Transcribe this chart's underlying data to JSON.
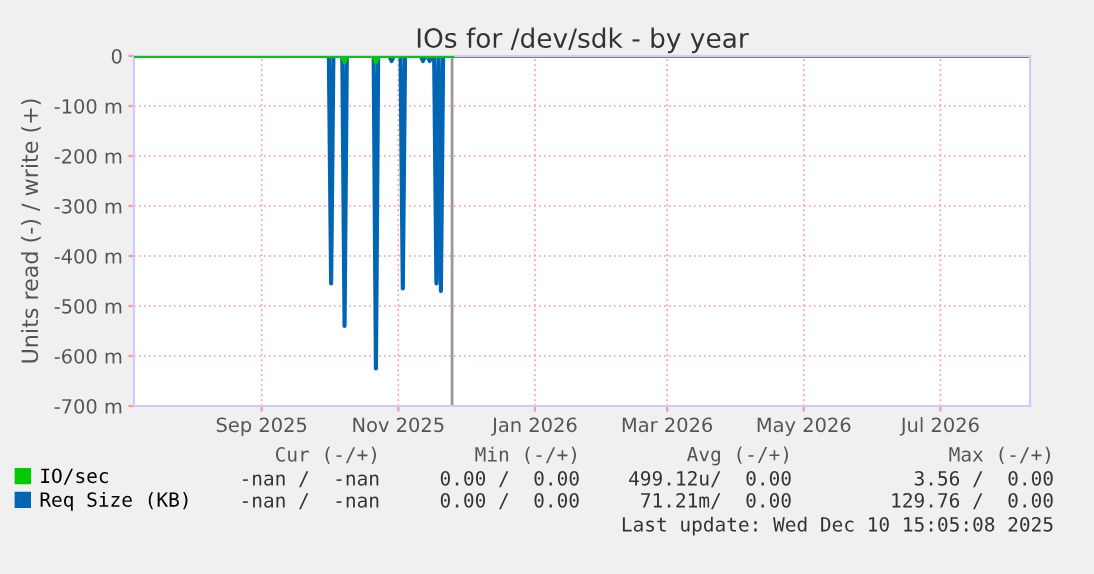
{
  "chart_data": {
    "type": "line",
    "title": "IOs for /dev/sdk - by year",
    "ylabel": "Units read (-) / write (+)",
    "series": [
      {
        "name": "IO/sec",
        "color": "#00cc00",
        "x": [
          "2025-07-06",
          "2025-10-07",
          "2025-10-08",
          "2025-10-09",
          "2025-10-21",
          "2025-10-22",
          "2025-10-23",
          "2025-11-25"
        ],
        "values": [
          0,
          0,
          -12,
          0,
          0,
          -12,
          0,
          0
        ]
      },
      {
        "name": "Req Size (KB)",
        "color": "#0066b3",
        "x": [
          "2025-07-06",
          "2025-10-01",
          "2025-10-02",
          "2025-10-03",
          "2025-10-07",
          "2025-10-08",
          "2025-10-09",
          "2025-10-21",
          "2025-10-22",
          "2025-10-23",
          "2025-10-28",
          "2025-10-29",
          "2025-10-30",
          "2025-11-02",
          "2025-11-03",
          "2025-11-04",
          "2025-11-11",
          "2025-11-12",
          "2025-11-13",
          "2025-11-14",
          "2025-11-15",
          "2025-11-16",
          "2025-11-17",
          "2025-11-18",
          "2025-11-19",
          "2025-11-20",
          "2025-11-21",
          "2025-11-25"
        ],
        "values": [
          0,
          0,
          -455,
          0,
          0,
          -540,
          0,
          0,
          -625,
          0,
          0,
          -10,
          0,
          0,
          -465,
          0,
          0,
          -10,
          0,
          0,
          -10,
          0,
          0,
          -455,
          0,
          -470,
          0,
          0
        ]
      }
    ],
    "xlim": [
      "2025-07-06",
      "2026-08-10"
    ],
    "xticks": [
      {
        "value": "2025-09-01",
        "label": "Sep 2025"
      },
      {
        "value": "2025-11-01",
        "label": "Nov 2025"
      },
      {
        "value": "2026-01-01",
        "label": "Jan 2026"
      },
      {
        "value": "2026-03-01",
        "label": "Mar 2026"
      },
      {
        "value": "2026-05-01",
        "label": "May 2026"
      },
      {
        "value": "2026-07-01",
        "label": "Jul 2026"
      }
    ],
    "ylim": [
      -700,
      0
    ],
    "yticks": [
      {
        "value": -700,
        "label": "-700 m"
      },
      {
        "value": -600,
        "label": "-600 m"
      },
      {
        "value": -500,
        "label": "-500 m"
      },
      {
        "value": -400,
        "label": "-400 m"
      },
      {
        "value": -300,
        "label": "-300 m"
      },
      {
        "value": -200,
        "label": "-200 m"
      },
      {
        "value": -100,
        "label": "-100 m"
      },
      0
    ],
    "ref_lines": [
      {
        "axis": "x",
        "value": "2025-11-25",
        "color": "#999999"
      }
    ],
    "grid": true,
    "legend": "bottom",
    "annotations": [
      "Cur (-/+)",
      "Min (-/+)",
      "Avg (-/+)",
      "Max (-/+)",
      "-nan /  -nan",
      "0.00 /  0.00",
      "499.12u/  0.00",
      "3.56 /  0.00",
      "-nan /  -nan",
      "0.00 /  0.00",
      "71.21m/  0.00",
      "129.76 /  0.00",
      "Last update: Wed Dec 10 15:05:08 2025"
    ]
  }
}
